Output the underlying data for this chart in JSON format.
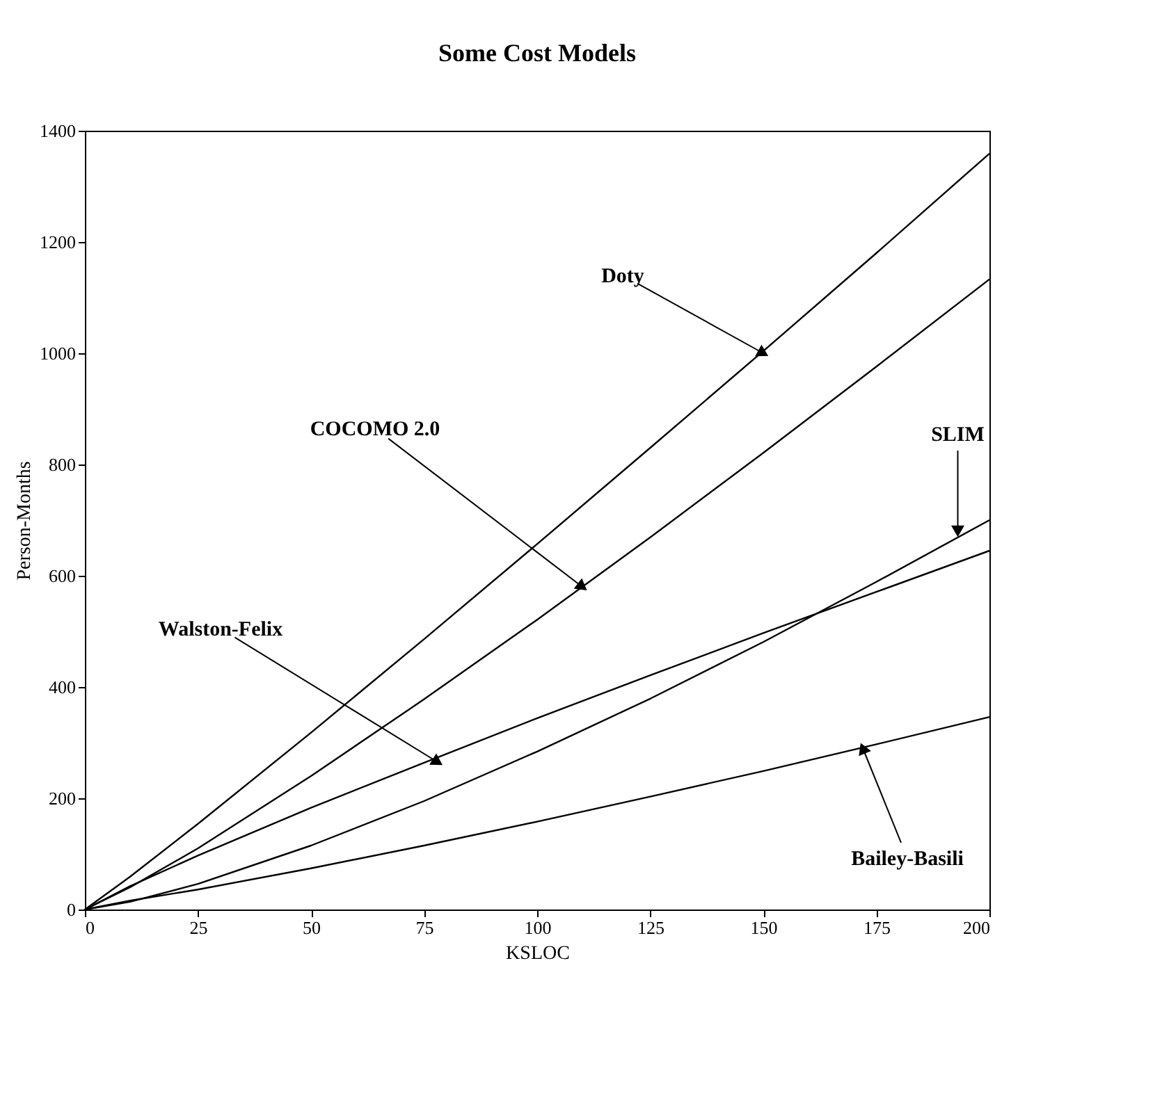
{
  "chart_data": {
    "type": "line",
    "title": "Some Cost Models",
    "xlabel": "KSLOC",
    "ylabel": "Person-Months",
    "x": [
      0,
      10,
      25,
      50,
      75,
      100,
      125,
      150,
      175,
      200
    ],
    "series": [
      {
        "color": "#000000",
        "values": [
          0,
          59,
          154,
          318,
          486,
          657,
          830,
          1004,
          1180,
          1359
        ]
      },
      {
        "color": "#000000",
        "values": [
          0,
          40,
          110,
          240,
          378,
          521,
          669,
          821,
          976,
          1133
        ]
      },
      {
        "color": "#000000",
        "values": [
          0,
          14,
          46,
          115,
          195,
          284,
          379,
          481,
          589,
          700
        ]
      },
      {
        "color": "#000000",
        "values": [
          0,
          42,
          97,
          183,
          264,
          344,
          421,
          497,
          571,
          645
        ]
      },
      {
        "color": "#000000",
        "values": [
          0,
          16,
          36,
          74,
          115,
          158,
          203,
          249,
          297,
          346
        ]
      }
    ],
    "annotations": [
      {
        "text": "Doty",
        "x": 150,
        "y": 1000
      },
      {
        "text": "COCOMO 2.0",
        "x": 110,
        "y": 580
      },
      {
        "text": "SLIM",
        "x": 193,
        "y": 680
      },
      {
        "text": "Walston-Felix",
        "x": 78,
        "y": 265
      },
      {
        "text": "Bailey-Basili",
        "x": 172,
        "y": 290
      }
    ],
    "xlim": [
      0,
      200
    ],
    "xticks": [
      0,
      25,
      50,
      75,
      100,
      125,
      150,
      175,
      200
    ],
    "ylim": [
      0,
      1400
    ],
    "yticks": [
      0,
      200,
      400,
      600,
      800,
      1000,
      1200,
      1400
    ],
    "grid": false,
    "marker": "none",
    "line_style": "solid"
  }
}
